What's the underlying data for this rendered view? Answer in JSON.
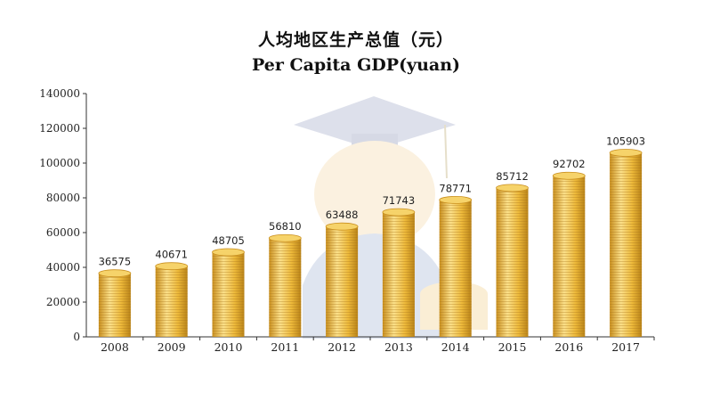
{
  "chart_data": {
    "type": "bar",
    "title": "人均地区生产总值（元）",
    "subtitle": "Per Capita GDP(yuan)",
    "xlabel": "",
    "ylabel": "",
    "categories": [
      "2008",
      "2009",
      "2010",
      "2011",
      "2012",
      "2013",
      "2014",
      "2015",
      "2016",
      "2017"
    ],
    "values": [
      36575,
      40671,
      48705,
      56810,
      63488,
      71743,
      78771,
      85712,
      92702,
      105903
    ],
    "ylim": [
      0,
      140000
    ],
    "yticks": [
      "0",
      "20000",
      "40000",
      "60000",
      "80000",
      "100000",
      "120000",
      "140000"
    ],
    "data_labels": [
      "36575",
      "40671",
      "48705",
      "56810",
      "63488",
      "71743",
      "78771",
      "85712",
      "92702",
      "105903"
    ],
    "grid": false,
    "legend": "none",
    "bar_style": "stacked gold coins",
    "colors": {
      "coin": "#EDB93A",
      "coin_dark": "#C98F1E",
      "coin_light": "#FBE08A",
      "axis": "#333333"
    }
  }
}
